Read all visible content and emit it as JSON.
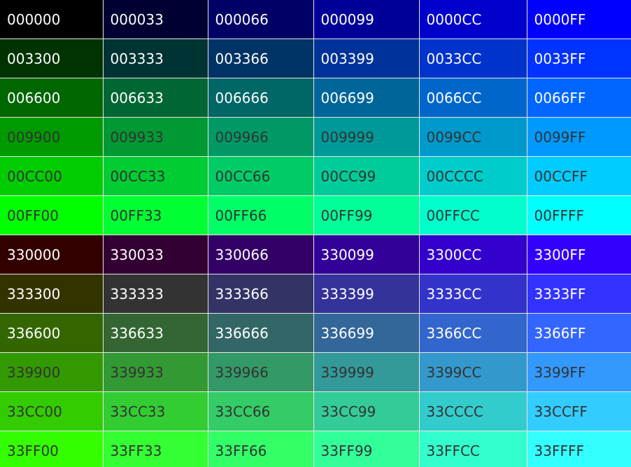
{
  "palette": {
    "rows": [
      [
        "000000",
        "000033",
        "000066",
        "000099",
        "0000CC",
        "0000FF"
      ],
      [
        "003300",
        "003333",
        "003366",
        "003399",
        "0033CC",
        "0033FF"
      ],
      [
        "006600",
        "006633",
        "006666",
        "006699",
        "0066CC",
        "0066FF"
      ],
      [
        "009900",
        "009933",
        "009966",
        "009999",
        "0099CC",
        "0099FF"
      ],
      [
        "00CC00",
        "00CC33",
        "00CC66",
        "00CC99",
        "00CCCC",
        "00CCFF"
      ],
      [
        "00FF00",
        "00FF33",
        "00FF66",
        "00FF99",
        "00FFCC",
        "00FFFF"
      ],
      [
        "330000",
        "330033",
        "330066",
        "330099",
        "3300CC",
        "3300FF"
      ],
      [
        "333300",
        "333333",
        "333366",
        "333399",
        "3333CC",
        "3333FF"
      ],
      [
        "336600",
        "336633",
        "336666",
        "336699",
        "3366CC",
        "3366FF"
      ],
      [
        "339900",
        "339933",
        "339966",
        "339999",
        "3399CC",
        "3399FF"
      ],
      [
        "33CC00",
        "33CC33",
        "33CC66",
        "33CC99",
        "33CCCC",
        "33CCFF"
      ],
      [
        "33FF00",
        "33FF33",
        "33FF66",
        "33FF99",
        "33FFCC",
        "33FFFF"
      ]
    ],
    "text_color_light": "#ffffff",
    "text_color_dark": "#333333",
    "dark_text_from_row": 3
  }
}
